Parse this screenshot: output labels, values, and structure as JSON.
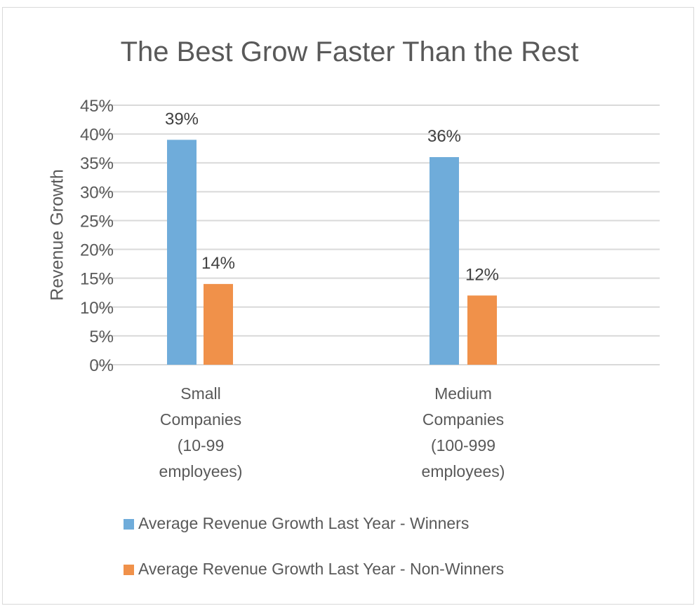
{
  "chart_data": {
    "type": "bar",
    "title": "The Best Grow Faster Than the Rest",
    "xlabel": "",
    "ylabel": "Revenue Growth",
    "ylim": [
      0,
      45
    ],
    "yticks": [
      "0%",
      "5%",
      "10%",
      "15%",
      "20%",
      "25%",
      "30%",
      "35%",
      "40%",
      "45%"
    ],
    "ytick_values": [
      0,
      5,
      10,
      15,
      20,
      25,
      30,
      35,
      40,
      45
    ],
    "grid": true,
    "legend_position": "bottom",
    "categories": [
      [
        "Small",
        "Companies",
        "(10-99",
        "employees)"
      ],
      [
        "Medium",
        "Companies",
        "(100-999",
        "employees)"
      ]
    ],
    "series": [
      {
        "name": "Average Revenue Growth Last Year - Winners",
        "color": "#6FACDA",
        "values": [
          39,
          36
        ],
        "labels": [
          "39%",
          "36%"
        ]
      },
      {
        "name": "Average Revenue Growth Last Year - Non-Winners",
        "color": "#F0914A",
        "values": [
          14,
          12
        ],
        "labels": [
          "14%",
          "12%"
        ]
      }
    ]
  }
}
